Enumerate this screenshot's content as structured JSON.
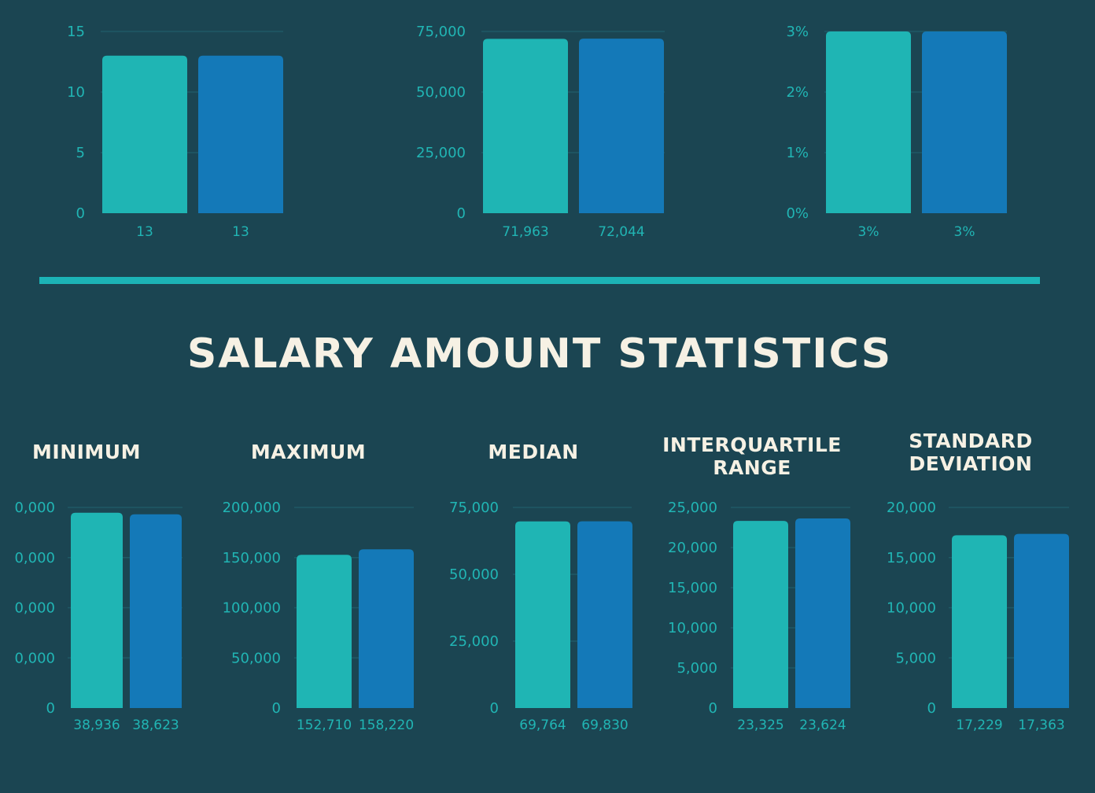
{
  "colors": {
    "background": "#1b4552",
    "series_a": "#1fb5b4",
    "series_b": "#1479b8",
    "text_light": "#f6f1e4",
    "tick_text": "#21b5b4",
    "divider": "#1cb3b6",
    "gridline": "#1f5a66"
  },
  "heading": "SALARY AMOUNT STATISTICS",
  "chart_data": [
    {
      "type": "bar",
      "title": "",
      "categories": [
        "",
        ""
      ],
      "values": [
        13,
        13
      ],
      "value_labels": [
        "13",
        "13"
      ],
      "ticks": [
        "0",
        "5",
        "10",
        "15"
      ],
      "ylim": [
        0,
        15
      ]
    },
    {
      "type": "bar",
      "title": "",
      "categories": [
        "",
        ""
      ],
      "values": [
        71963,
        72044
      ],
      "value_labels": [
        "71,963",
        "72,044"
      ],
      "ticks": [
        "0",
        "25,000",
        "50,000",
        "75,000"
      ],
      "ylim": [
        0,
        75000
      ]
    },
    {
      "type": "bar",
      "title": "",
      "categories": [
        "",
        ""
      ],
      "values": [
        3,
        3
      ],
      "value_labels": [
        "3%",
        "3%"
      ],
      "ticks": [
        "0%",
        "1%",
        "2%",
        "3%"
      ],
      "ylim": [
        0,
        3
      ]
    },
    {
      "type": "bar",
      "title": "MINIMUM",
      "categories": [
        "",
        ""
      ],
      "values": [
        38936,
        38623
      ],
      "value_labels": [
        "38,936",
        "38,623"
      ],
      "ticks": [
        "0",
        "0,000",
        "0,000",
        "0,000",
        "0,000"
      ],
      "ylim": [
        0,
        40000
      ]
    },
    {
      "type": "bar",
      "title": "MAXIMUM",
      "categories": [
        "",
        ""
      ],
      "values": [
        152710,
        158220
      ],
      "value_labels": [
        "152,710",
        "158,220"
      ],
      "ticks": [
        "0",
        "50,000",
        "100,000",
        "150,000",
        "200,000"
      ],
      "ylim": [
        0,
        200000
      ]
    },
    {
      "type": "bar",
      "title": "MEDIAN",
      "categories": [
        "",
        ""
      ],
      "values": [
        69764,
        69830
      ],
      "value_labels": [
        "69,764",
        "69,830"
      ],
      "ticks": [
        "0",
        "25,000",
        "50,000",
        "75,000"
      ],
      "ylim": [
        0,
        75000
      ]
    },
    {
      "type": "bar",
      "title": "INTERQUARTILE\nRANGE",
      "categories": [
        "",
        ""
      ],
      "values": [
        23325,
        23624
      ],
      "value_labels": [
        "23,325",
        "23,624"
      ],
      "ticks": [
        "0",
        "5,000",
        "10,000",
        "15,000",
        "20,000",
        "25,000"
      ],
      "ylim": [
        0,
        25000
      ]
    },
    {
      "type": "bar",
      "title": "STANDARD\nDEVIATION",
      "categories": [
        "",
        ""
      ],
      "values": [
        17229,
        17363
      ],
      "value_labels": [
        "17,229",
        "17,363"
      ],
      "ticks": [
        "0",
        "5,000",
        "10,000",
        "15,000",
        "20,000"
      ],
      "ylim": [
        0,
        20000
      ]
    }
  ]
}
